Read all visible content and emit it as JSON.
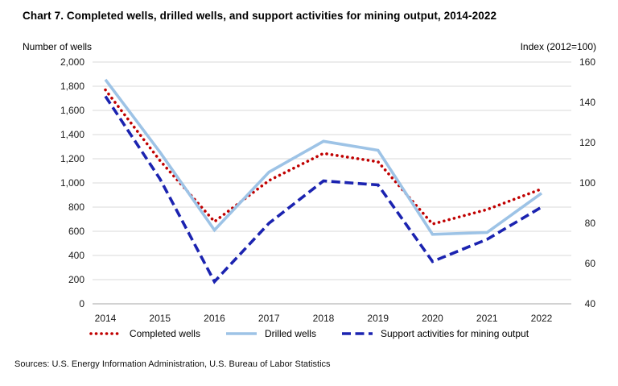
{
  "title": "Chart 7. Completed wells, drilled wells, and support activities for mining output, 2014-2022",
  "sources": "Sources: U.S. Energy Information Administration, U.S. Bureau of Labor Statistics",
  "left_axis": {
    "caption": "Number of wells",
    "tick_labels": [
      "2,000",
      "1,800",
      "1,600",
      "1,400",
      "1,200",
      "1,000",
      "800",
      "600",
      "400",
      "200",
      "0"
    ],
    "tick_values": [
      2000,
      1800,
      1600,
      1400,
      1200,
      1000,
      800,
      600,
      400,
      200,
      0
    ]
  },
  "right_axis": {
    "caption": "Index (2012=100)",
    "tick_labels": [
      "160",
      "140",
      "120",
      "100",
      "80",
      "60",
      "40"
    ],
    "tick_values": [
      160,
      140,
      120,
      100,
      80,
      60,
      40
    ]
  },
  "colors": {
    "completed": "#C00000",
    "drilled": "#9DC3E6",
    "support": "#1B23B0",
    "gridline": "#D9D9D9",
    "axisline": "#A6A6A6"
  },
  "chart_data": {
    "type": "line",
    "x": [
      "2014",
      "2015",
      "2016",
      "2017",
      "2018",
      "2019",
      "2020",
      "2021",
      "2022"
    ],
    "left_ylim": [
      0,
      2000
    ],
    "right_ylim": [
      40,
      160
    ],
    "grid": true,
    "legend_position": "bottom",
    "title": "Chart 7. Completed wells, drilled wells, and support activities for mining output, 2014-2022",
    "left_ylabel": "Number of wells",
    "right_ylabel": "Index (2012=100)",
    "series": [
      {
        "name": "Completed wells",
        "axis": "left",
        "style": "dotted",
        "color": "#C00000",
        "values": [
          1770,
          1185,
          680,
          1020,
          1245,
          1175,
          660,
          780,
          950
        ]
      },
      {
        "name": "Drilled wells",
        "axis": "left",
        "style": "solid",
        "color": "#9DC3E6",
        "values": [
          1855,
          1255,
          610,
          1090,
          1345,
          1270,
          575,
          590,
          915
        ]
      },
      {
        "name": "Support activities for mining output",
        "axis": "right",
        "style": "dashed",
        "color": "#1B23B0",
        "values": [
          143,
          102,
          51,
          80,
          101,
          99,
          61,
          72,
          88
        ]
      }
    ]
  }
}
